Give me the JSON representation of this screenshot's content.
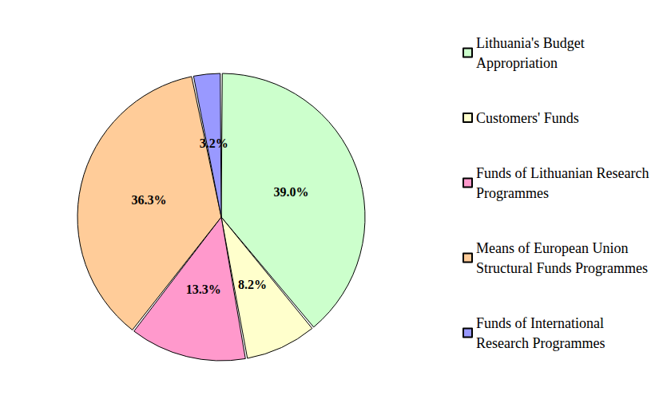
{
  "chart_data": {
    "type": "pie",
    "categories": [
      "Lithuania's Budget Appropriation",
      "Customers' Funds",
      "Funds of Lithuanian Research Programmes",
      "Means of European Union Structural Funds Programmes",
      "Funds of International Research Programmes"
    ],
    "values": [
      39.0,
      8.2,
      13.3,
      36.3,
      3.2
    ],
    "value_labels": [
      "39.0%",
      "8.2%",
      "13.3%",
      "36.3%",
      "3.2%"
    ],
    "colors": [
      "#ccffcc",
      "#ffffcc",
      "#ff99cc",
      "#ffcc99",
      "#9999ff"
    ],
    "data_labels": true,
    "legend": "right"
  }
}
